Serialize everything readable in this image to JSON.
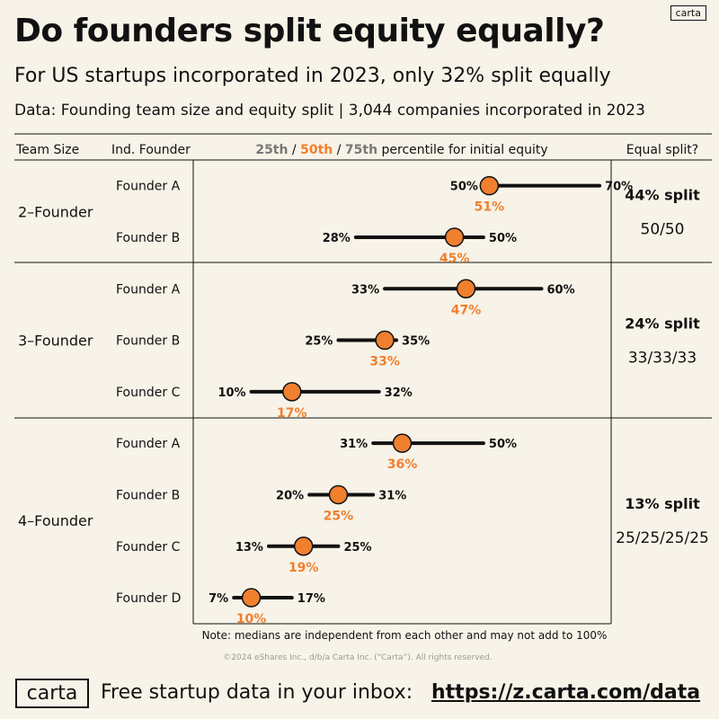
{
  "header": {
    "logo": "carta",
    "title": "Do founders split equity equally?",
    "subtitle": "For US startups incorporated in 2023, only 32% split equally",
    "source": "Data: Founding team size and equity split | 3,044 companies incorporated in 2023"
  },
  "table": {
    "col_team_size": "Team Size",
    "col_founder": "Ind. Founder",
    "col_p25": "25th",
    "col_sep1": " / ",
    "col_p50": "50th",
    "col_sep2": " / ",
    "col_p75": "75th",
    "col_rest": " percentile for initial equity",
    "col_equal": "Equal split?"
  },
  "colors": {
    "background": "#F7F3E8",
    "accent": "#F07F2E",
    "grey": "#777777",
    "line": "#111111"
  },
  "chart_data": {
    "type": "range-dot",
    "unit": "%",
    "xlim": [
      0,
      72
    ],
    "groups": [
      {
        "team": "2–Founder",
        "equal_pct": "44% split",
        "equal_split": "50/50",
        "founders": [
          {
            "name": "Founder A",
            "p25": 50,
            "p50": 51,
            "p75": 70,
            "p25_label": "50%",
            "p50_label": "51%",
            "p75_label": "70%"
          },
          {
            "name": "Founder B",
            "p25": 28,
            "p50": 45,
            "p75": 50,
            "p25_label": "28%",
            "p50_label": "45%",
            "p75_label": "50%"
          }
        ]
      },
      {
        "team": "3–Founder",
        "equal_pct": "24% split",
        "equal_split": "33/33/33",
        "founders": [
          {
            "name": "Founder A",
            "p25": 33,
            "p50": 47,
            "p75": 60,
            "p25_label": "33%",
            "p50_label": "47%",
            "p75_label": "60%"
          },
          {
            "name": "Founder B",
            "p25": 25,
            "p50": 33,
            "p75": 35,
            "p25_label": "25%",
            "p50_label": "33%",
            "p75_label": "35%"
          },
          {
            "name": "Founder C",
            "p25": 10,
            "p50": 17,
            "p75": 32,
            "p25_label": "10%",
            "p50_label": "17%",
            "p75_label": "32%"
          }
        ]
      },
      {
        "team": "4–Founder",
        "equal_pct": "13% split",
        "equal_split": "25/25/25/25",
        "founders": [
          {
            "name": "Founder A",
            "p25": 31,
            "p50": 36,
            "p75": 50,
            "p25_label": "31%",
            "p50_label": "36%",
            "p75_label": "50%"
          },
          {
            "name": "Founder B",
            "p25": 20,
            "p50": 25,
            "p75": 31,
            "p25_label": "20%",
            "p50_label": "25%",
            "p75_label": "31%"
          },
          {
            "name": "Founder C",
            "p25": 13,
            "p50": 19,
            "p75": 25,
            "p25_label": "13%",
            "p50_label": "19%",
            "p75_label": "25%"
          },
          {
            "name": "Founder D",
            "p25": 7,
            "p50": 10,
            "p75": 17,
            "p25_label": "7%",
            "p50_label": "10%",
            "p75_label": "17%"
          }
        ]
      }
    ]
  },
  "notes": {
    "note": "Note: medians are independent from each other and may not add to 100%",
    "copyright": "©2024 eShares Inc., d/b/a Carta Inc. (“Carta”). All rights reserved."
  },
  "footer": {
    "logo": "carta",
    "cta": "Free startup data in your inbox:",
    "link": "https://z.carta.com/data"
  }
}
